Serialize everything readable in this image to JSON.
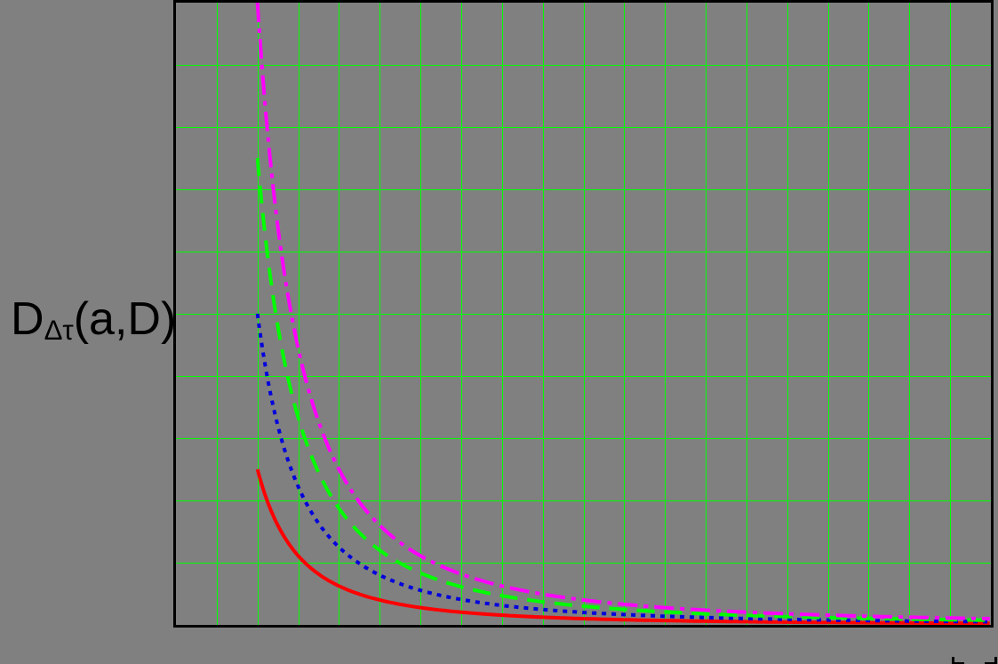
{
  "page": {
    "background": "#808080"
  },
  "y_axis_label": {
    "base": "D",
    "subscript": "Δτ",
    "suffix": "(a,D)"
  },
  "plot": {
    "border_color": "#000000",
    "background": "#808080",
    "grid_color": "#00ff00",
    "grid_columns": 20,
    "grid_rows": 10,
    "curve_stroke_width": 4
  },
  "cropped_placeholder": {
    "description": "partially visible bracket corners at bottom-right edge",
    "color": "#000000"
  },
  "chart_data": {
    "type": "line",
    "title": "",
    "xlabel": "",
    "ylabel": "D_Δτ(a,D)",
    "grid": "on",
    "legend": "none",
    "axes_tick_labels": "none (unlabeled grid units)",
    "xlim_units": [
      0,
      20
    ],
    "ylim_units": [
      0,
      10
    ],
    "model": "y = c / x^2 for x in [2, 20] grid units",
    "x_samples": [
      2,
      3,
      4,
      5,
      6,
      7,
      8,
      9,
      10,
      12,
      14,
      16,
      18,
      20
    ],
    "series": [
      {
        "name": "red solid curve",
        "color": "#ff0000",
        "line_style": "solid",
        "dash": "",
        "c": 10,
        "x_start": 2,
        "x_end": 20,
        "y_samples": [
          2.5,
          1.11,
          0.63,
          0.4,
          0.28,
          0.2,
          0.16,
          0.12,
          0.1,
          0.07,
          0.05,
          0.04,
          0.03,
          0.025
        ]
      },
      {
        "name": "blue dotted curve",
        "color": "#0000dd",
        "line_style": "dotted",
        "dash": "5 6",
        "c": 20,
        "x_start": 2,
        "x_end": 20,
        "y_samples": [
          5,
          2.22,
          1.25,
          0.8,
          0.56,
          0.41,
          0.31,
          0.25,
          0.2,
          0.14,
          0.1,
          0.08,
          0.06,
          0.05
        ]
      },
      {
        "name": "green dashed curve",
        "color": "#00ff00",
        "line_style": "dashed",
        "dash": "20 11",
        "c": 30,
        "x_start": 2,
        "x_end": 20,
        "y_samples": [
          7.5,
          3.33,
          1.88,
          1.2,
          0.83,
          0.61,
          0.47,
          0.37,
          0.3,
          0.21,
          0.15,
          0.12,
          0.09,
          0.075
        ]
      },
      {
        "name": "magenta dash-dot curve",
        "color": "#ff00ff",
        "line_style": "dash-dot",
        "dash": "22 7 5 7",
        "c": 40,
        "x_start": 2,
        "x_end": 20,
        "y_samples": [
          10,
          4.44,
          2.5,
          1.6,
          1.11,
          0.82,
          0.63,
          0.49,
          0.4,
          0.28,
          0.2,
          0.16,
          0.12,
          0.1
        ]
      }
    ]
  }
}
